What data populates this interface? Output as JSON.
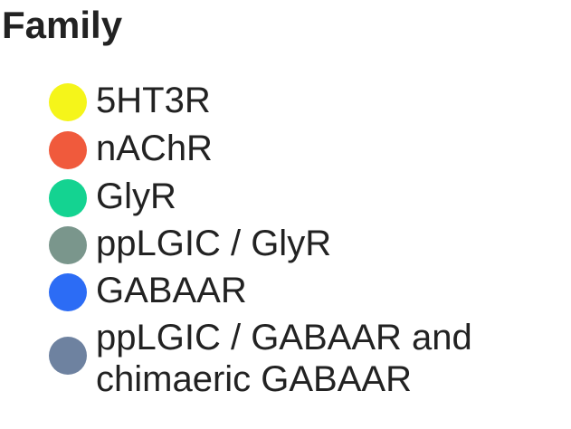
{
  "legend": {
    "title": "Family",
    "items": [
      {
        "label": "5HT3R",
        "color": "#f5f51a",
        "icon": "circle-swatch"
      },
      {
        "label": "nAChR",
        "color": "#f05a3c",
        "icon": "circle-swatch"
      },
      {
        "label": "GlyR",
        "color": "#14d391",
        "icon": "circle-swatch"
      },
      {
        "label": "ppLGIC / GlyR",
        "color": "#7a968c",
        "icon": "circle-swatch"
      },
      {
        "label": "GABAAR",
        "color": "#2c6cf5",
        "icon": "circle-swatch"
      },
      {
        "label": "ppLGIC / GABAAR and\nchimaeric GABAAR",
        "color": "#6e82a0",
        "icon": "circle-swatch"
      }
    ]
  }
}
